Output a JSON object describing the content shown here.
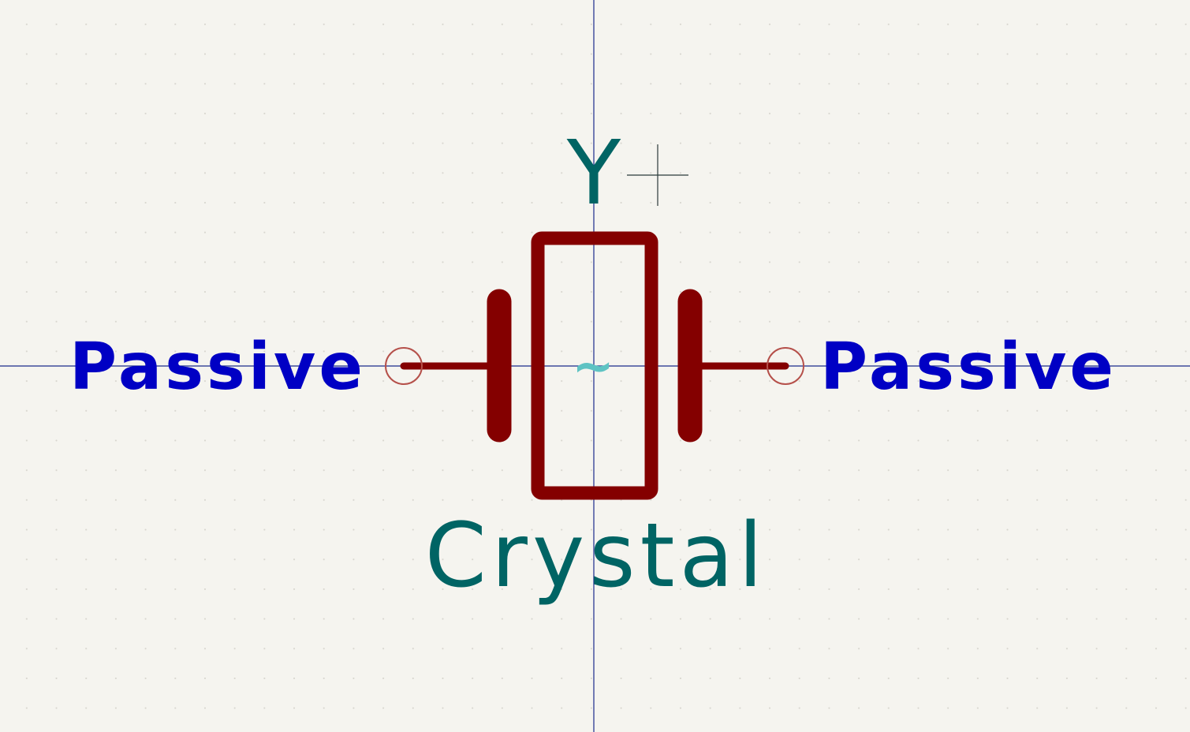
{
  "symbol": {
    "reference": "Y",
    "value": "Crystal",
    "body_marker": "~"
  },
  "pins": {
    "left": {
      "electrical_type": "Passive"
    },
    "right": {
      "electrical_type": "Passive"
    }
  },
  "colors": {
    "background": "#f5f4ef",
    "body": "#840000",
    "pin_type_text": "#0000c4",
    "field_text": "#006464",
    "body_marker": "#5ec3c3",
    "axes": "#1a2a8c",
    "pin_end": "#b5504a",
    "cursor": "#2a3a3a"
  },
  "icons": {
    "cursor": "crosshair-cursor-icon",
    "pin_end": "pin-connection-circle-icon"
  }
}
